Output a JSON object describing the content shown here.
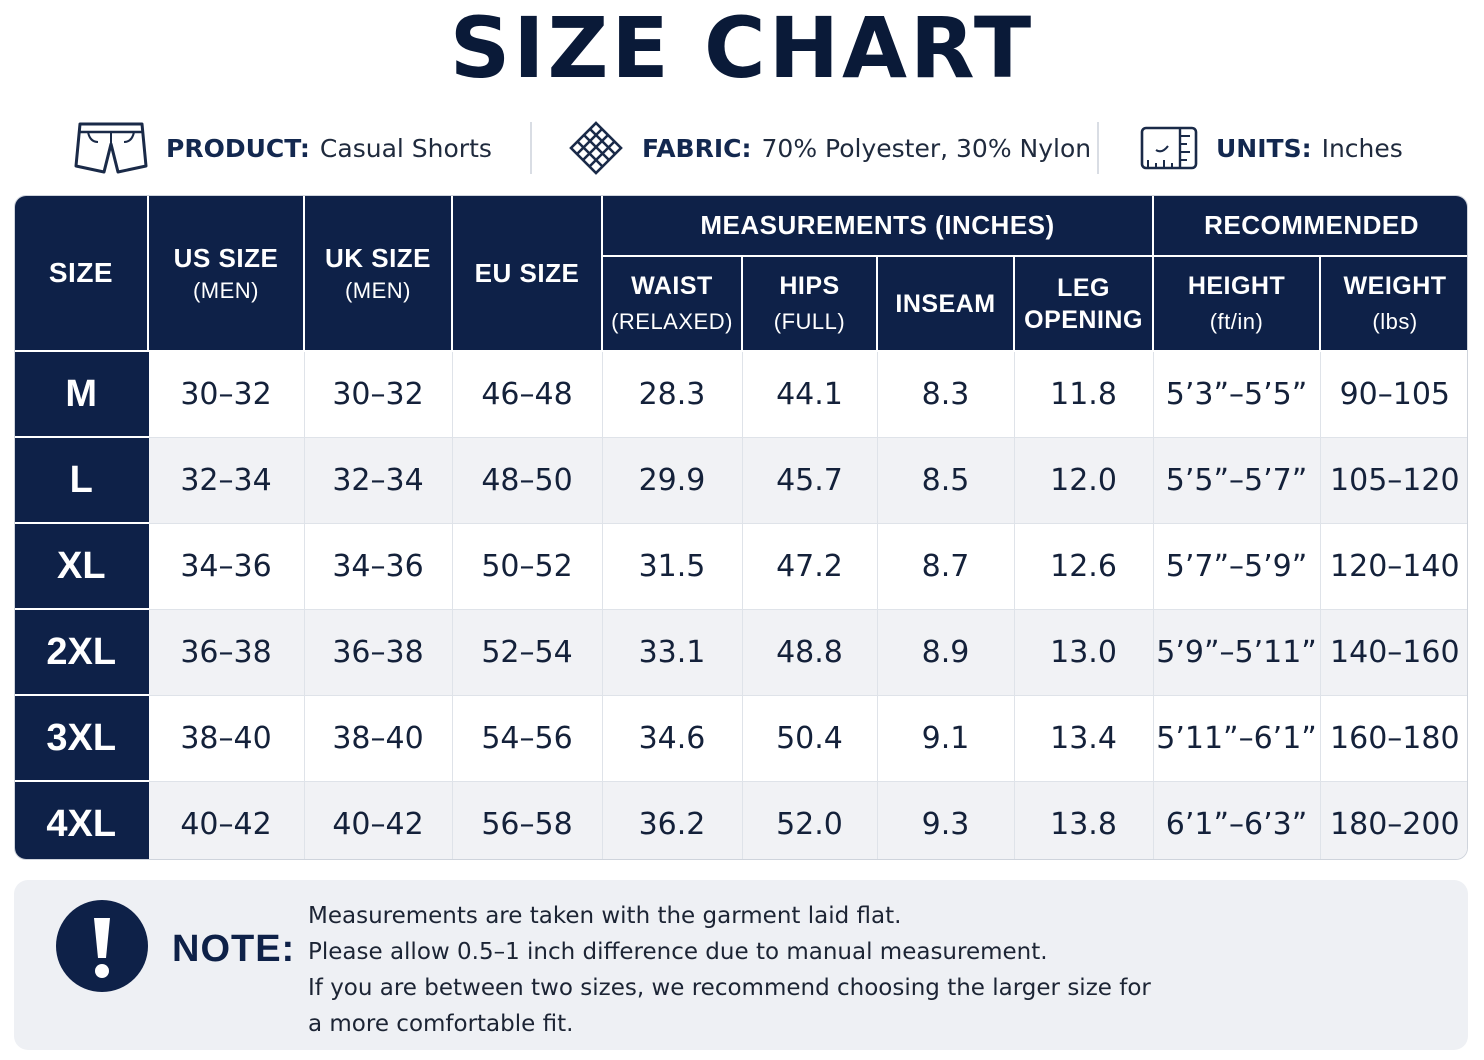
{
  "title": "SIZE CHART",
  "info": {
    "product": {
      "label": "PRODUCT:",
      "value": "Casual Shorts",
      "icon": "shorts-icon"
    },
    "fabric": {
      "label": "FABRIC:",
      "value": "70% Polyester, 30% Nylon",
      "icon": "fabric-weave-icon"
    },
    "units": {
      "label": "UNITS:",
      "value": "Inches",
      "icon": "measuring-tape-icon"
    }
  },
  "table": {
    "headers": {
      "size": "SIZE",
      "us": {
        "main": "US SIZE",
        "sub": "(MEN)"
      },
      "uk": {
        "main": "UK SIZE",
        "sub": "(MEN)"
      },
      "eu": "EU SIZE",
      "measurements_group": "MEASUREMENTS (INCHES)",
      "recommended_group": "RECOMMENDED",
      "waist": {
        "main": "WAIST",
        "sub": "(RELAXED)"
      },
      "hips": {
        "main": "HIPS",
        "sub": "(FULL)"
      },
      "inseam": "INSEAM",
      "leg": {
        "main": "LEG",
        "sub": "OPENING"
      },
      "height": {
        "main": "HEIGHT",
        "sub": "(ft/in)"
      },
      "weight": {
        "main": "WEIGHT",
        "sub": "(lbs)"
      }
    },
    "rows": [
      {
        "size": "M",
        "us": "30–32",
        "uk": "30–32",
        "eu": "46–48",
        "waist": "28.3",
        "hips": "44.1",
        "inseam": "8.3",
        "leg": "11.8",
        "height": "5’3”–5’5”",
        "weight": "90–105"
      },
      {
        "size": "L",
        "us": "32–34",
        "uk": "32–34",
        "eu": "48–50",
        "waist": "29.9",
        "hips": "45.7",
        "inseam": "8.5",
        "leg": "12.0",
        "height": "5’5”–5’7”",
        "weight": "105–120"
      },
      {
        "size": "XL",
        "us": "34–36",
        "uk": "34–36",
        "eu": "50–52",
        "waist": "31.5",
        "hips": "47.2",
        "inseam": "8.7",
        "leg": "12.6",
        "height": "5’7”–5’9”",
        "weight": "120–140"
      },
      {
        "size": "2XL",
        "us": "36–38",
        "uk": "36–38",
        "eu": "52–54",
        "waist": "33.1",
        "hips": "48.8",
        "inseam": "8.9",
        "leg": "13.0",
        "height": "5’9”–5’11”",
        "weight": "140–160"
      },
      {
        "size": "3XL",
        "us": "38–40",
        "uk": "38–40",
        "eu": "54–56",
        "waist": "34.6",
        "hips": "50.4",
        "inseam": "9.1",
        "leg": "13.4",
        "height": "5’11”–6’1”",
        "weight": "160–180"
      },
      {
        "size": "4XL",
        "us": "40–42",
        "uk": "40–42",
        "eu": "56–58",
        "waist": "36.2",
        "hips": "52.0",
        "inseam": "9.3",
        "leg": "13.8",
        "height": "6’1”–6’3”",
        "weight": "180–200"
      }
    ]
  },
  "note": {
    "label": "NOTE:",
    "icon": "exclamation-icon",
    "lines": [
      "Measurements are taken with the garment laid flat.",
      "Please allow 0.5–1 inch difference due to manual measurement.",
      "If you are between two sizes, we recommend choosing the larger size for",
      "a more comfortable fit."
    ]
  },
  "colors": {
    "navy": "#0e2148",
    "row_alt": "#f1f2f5",
    "note_bg": "#eef0f4"
  }
}
